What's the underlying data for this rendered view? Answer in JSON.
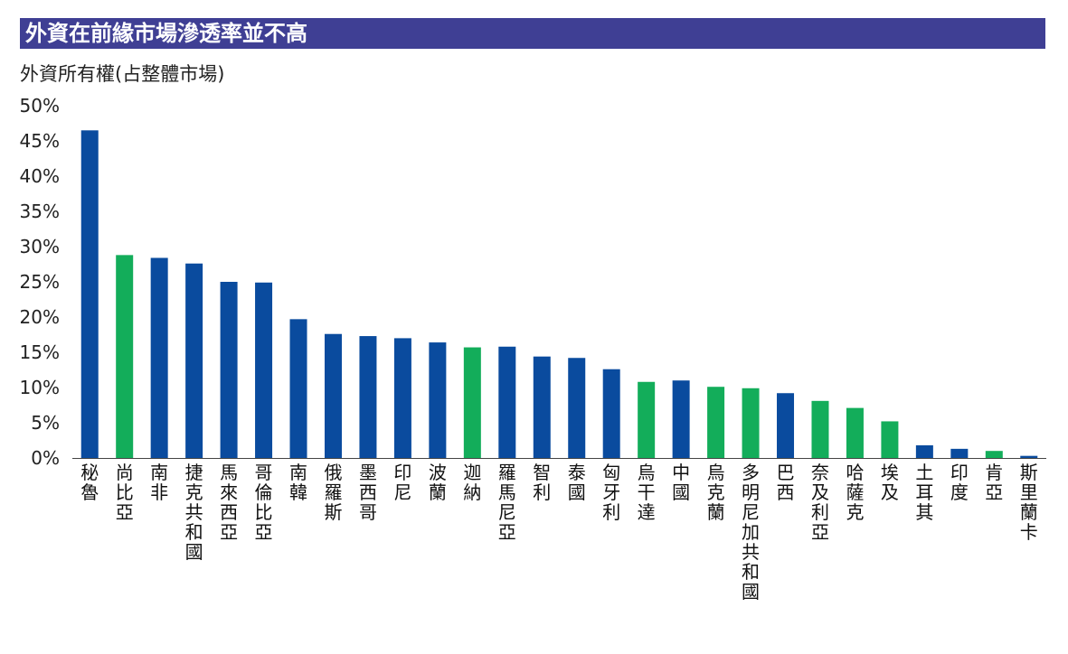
{
  "title": "外資在前緣市場滲透率並不高",
  "colors": {
    "banner": "#3f3f94",
    "blue": "#0a4b9e",
    "green": "#13ad5a",
    "axis": "#444444"
  },
  "chart_data": {
    "type": "bar",
    "ylabel": "外資所有權(占整體市場)",
    "xlabel": "",
    "ylim": [
      0,
      50
    ],
    "yticks": [
      "0%",
      "5%",
      "10%",
      "15%",
      "20%",
      "25%",
      "30%",
      "35%",
      "40%",
      "45%",
      "50%"
    ],
    "grid": false,
    "categories": [
      "秘魯",
      "尚比亞",
      "南非",
      "捷克共和國",
      "馬來西亞",
      "哥倫比亞",
      "南韓",
      "俄羅斯",
      "墨西哥",
      "印尼",
      "波蘭",
      "迦納",
      "羅馬尼亞",
      "智利",
      "泰國",
      "匈牙利",
      "烏干達",
      "中國",
      "烏克蘭",
      "多明尼加共和國",
      "巴西",
      "奈及利亞",
      "哈薩克",
      "埃及",
      "土耳其",
      "印度",
      "肯亞",
      "斯里蘭卡"
    ],
    "values": [
      46.5,
      28.8,
      28.4,
      27.6,
      25.0,
      24.9,
      19.7,
      17.6,
      17.3,
      17.0,
      16.4,
      15.7,
      15.8,
      14.4,
      14.2,
      12.6,
      10.8,
      11.0,
      10.1,
      9.9,
      9.2,
      8.1,
      7.1,
      5.2,
      1.8,
      1.3,
      1.0,
      0.3
    ],
    "color_groups": [
      "blue",
      "green",
      "blue",
      "blue",
      "blue",
      "blue",
      "blue",
      "blue",
      "blue",
      "blue",
      "blue",
      "green",
      "blue",
      "blue",
      "blue",
      "blue",
      "green",
      "blue",
      "green",
      "green",
      "blue",
      "green",
      "green",
      "green",
      "blue",
      "blue",
      "green",
      "blue"
    ]
  }
}
